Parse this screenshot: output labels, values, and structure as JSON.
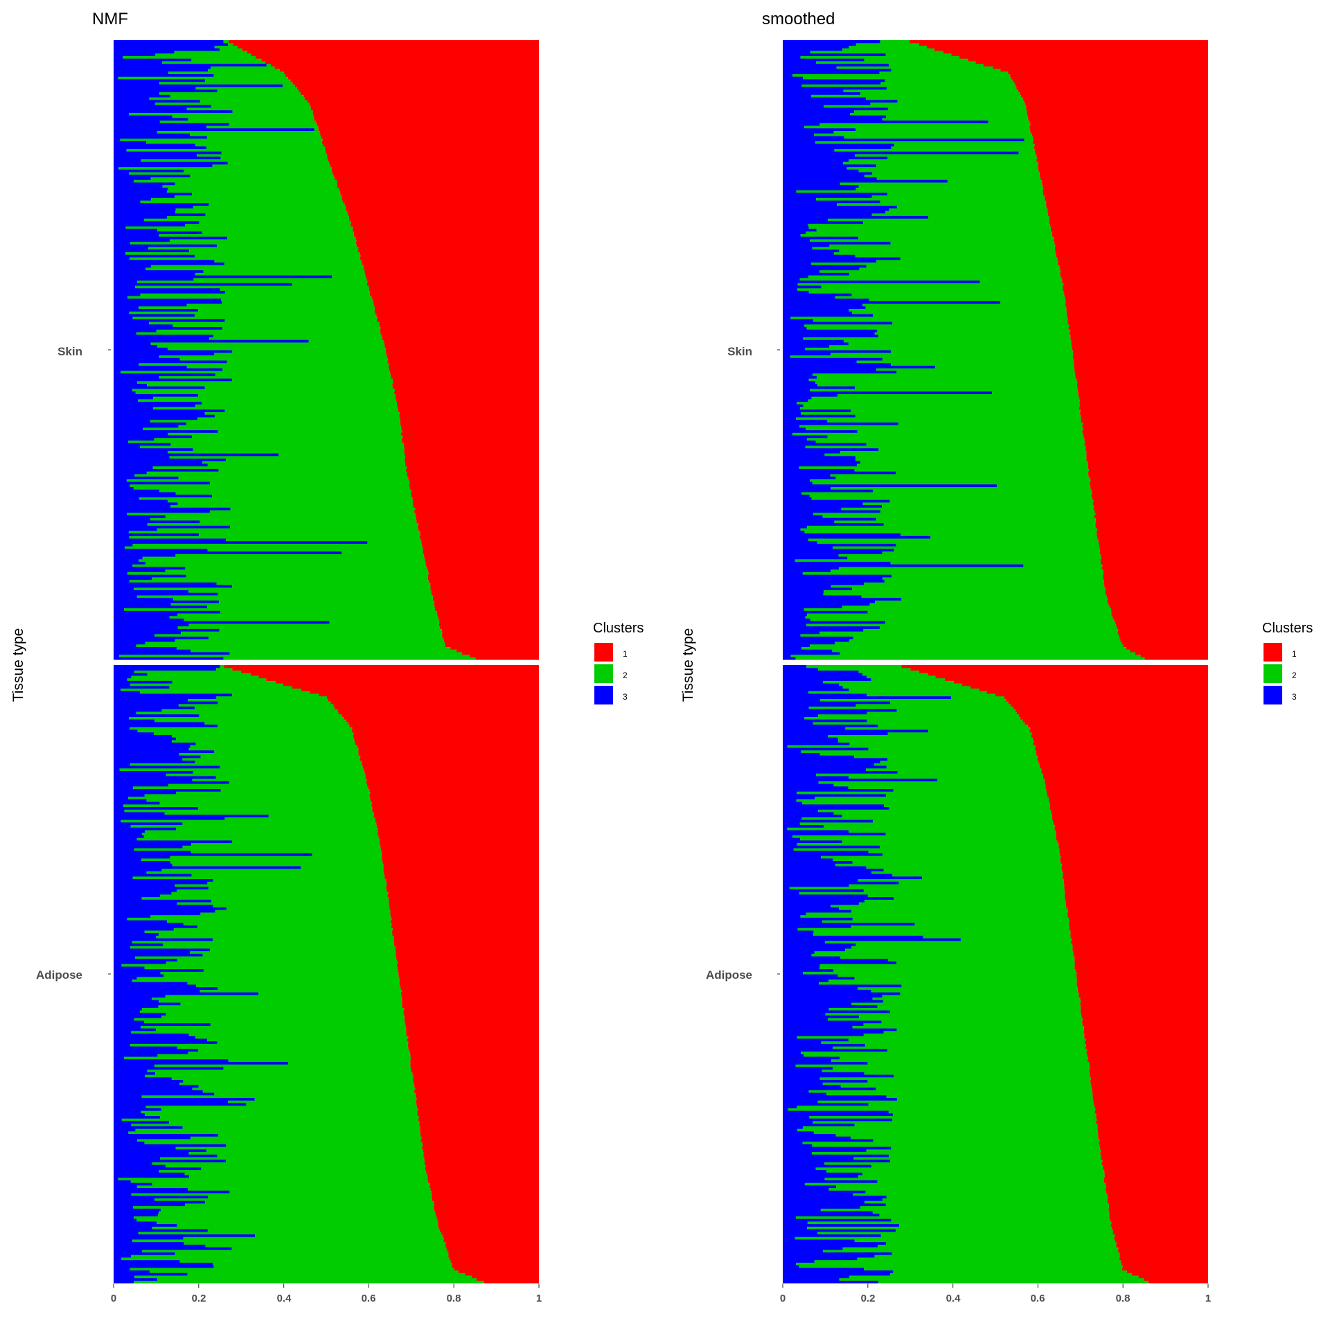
{
  "chart_data": [
    {
      "type": "bar",
      "orientation": "horizontal",
      "stacked": true,
      "title": "NMF",
      "xlabel": "",
      "ylabel": "Tissue type",
      "xlim": [
        0,
        1
      ],
      "x_ticks": [
        "0",
        "0.2",
        "0.4",
        "0.6",
        "0.8",
        "1"
      ],
      "grid": false,
      "facets": [
        {
          "label": "Skin",
          "bars": 240,
          "cluster1_profile": [
            [
              0,
              0.15
            ],
            [
              0.02,
              0.22
            ],
            [
              0.1,
              0.25
            ],
            [
              0.2,
              0.28
            ],
            [
              0.3,
              0.31
            ],
            [
              0.4,
              0.33
            ],
            [
              0.5,
              0.36
            ],
            [
              0.6,
              0.4
            ],
            [
              0.7,
              0.44
            ],
            [
              0.8,
              0.49
            ],
            [
              0.9,
              0.54
            ],
            [
              0.95,
              0.6
            ],
            [
              1.0,
              0.73
            ]
          ],
          "cluster3_profile": [
            0.03,
            0.28
          ],
          "cluster3_long_tail_max": 0.6
        },
        {
          "label": "Adipose",
          "bars": 240,
          "cluster1_profile": [
            [
              0,
              0.13
            ],
            [
              0.02,
              0.2
            ],
            [
              0.1,
              0.24
            ],
            [
              0.2,
              0.27
            ],
            [
              0.3,
              0.29
            ],
            [
              0.4,
              0.31
            ],
            [
              0.5,
              0.33
            ],
            [
              0.6,
              0.35
            ],
            [
              0.7,
              0.37
            ],
            [
              0.8,
              0.4
            ],
            [
              0.9,
              0.44
            ],
            [
              0.95,
              0.5
            ],
            [
              1.0,
              0.74
            ]
          ],
          "cluster3_profile": [
            0.03,
            0.28
          ],
          "cluster3_long_tail_max": 0.5
        }
      ],
      "legend": {
        "title": "Clusters",
        "position": "right",
        "entries": [
          {
            "label": "1",
            "color": "#ff0000"
          },
          {
            "label": "2",
            "color": "#00cc00"
          },
          {
            "label": "3",
            "color": "#0000ff"
          }
        ]
      }
    },
    {
      "type": "bar",
      "orientation": "horizontal",
      "stacked": true,
      "title": "smoothed",
      "xlabel": "",
      "ylabel": "Tissue type",
      "xlim": [
        0,
        1
      ],
      "x_ticks": [
        "0",
        "0.2",
        "0.4",
        "0.6",
        "0.8",
        "1"
      ],
      "grid": false,
      "facets": [
        {
          "label": "Skin",
          "bars": 240,
          "cluster1_profile": [
            [
              0,
              0.15
            ],
            [
              0.02,
              0.2
            ],
            [
              0.1,
              0.24
            ],
            [
              0.2,
              0.26
            ],
            [
              0.3,
              0.28
            ],
            [
              0.4,
              0.3
            ],
            [
              0.5,
              0.32
            ],
            [
              0.6,
              0.34
            ],
            [
              0.7,
              0.37
            ],
            [
              0.8,
              0.4
            ],
            [
              0.9,
              0.43
            ],
            [
              0.95,
              0.47
            ],
            [
              1.0,
              0.7
            ]
          ],
          "cluster3_profile": [
            0.03,
            0.28
          ],
          "cluster3_long_tail_max": 0.58
        },
        {
          "label": "Adipose",
          "bars": 240,
          "cluster1_profile": [
            [
              0,
              0.14
            ],
            [
              0.02,
              0.2
            ],
            [
              0.1,
              0.23
            ],
            [
              0.2,
              0.25
            ],
            [
              0.3,
              0.27
            ],
            [
              0.4,
              0.29
            ],
            [
              0.5,
              0.31
            ],
            [
              0.6,
              0.33
            ],
            [
              0.7,
              0.35
            ],
            [
              0.8,
              0.38
            ],
            [
              0.9,
              0.42
            ],
            [
              0.95,
              0.48
            ],
            [
              1.0,
              0.72
            ]
          ],
          "cluster3_profile": [
            0.03,
            0.28
          ],
          "cluster3_long_tail_max": 0.42
        }
      ],
      "legend": {
        "title": "Clusters",
        "position": "right",
        "entries": [
          {
            "label": "1",
            "color": "#ff0000"
          },
          {
            "label": "2",
            "color": "#00cc00"
          },
          {
            "label": "3",
            "color": "#0000ff"
          }
        ]
      }
    }
  ]
}
